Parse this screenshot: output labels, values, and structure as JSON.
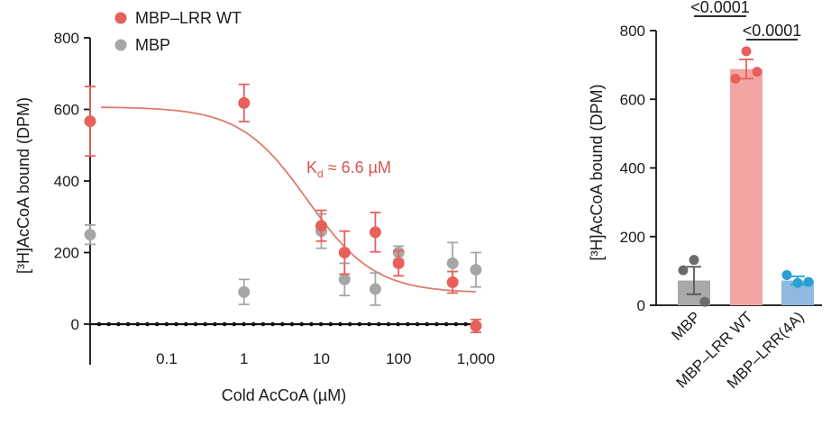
{
  "chart_data": [
    {
      "type": "scatter",
      "title": "",
      "xlabel": "Cold AcCoA (µM)",
      "ylabel": "[³H]AcCoA bound (DPM)",
      "x_scale": "log",
      "x_tick_labels": [
        "0.1",
        "1",
        "10",
        "100",
        "1,000"
      ],
      "x_ticks": [
        0.1,
        1,
        10,
        100,
        1000
      ],
      "y_ticks": [
        0,
        200,
        400,
        600,
        800
      ],
      "ylim": [
        0,
        800
      ],
      "legend_position": "top-left",
      "annotation": {
        "label_main": "K",
        "label_sub": "d",
        "label_rest": " ≈ 6.6 µM",
        "color": "#d9534f"
      },
      "fit": {
        "series": "MBP–LRR WT",
        "top": 607,
        "bottom": 87,
        "kd": 6.6,
        "hill": 1.0,
        "color": "#e07a6e"
      },
      "series": [
        {
          "name": "MBP–LRR WT",
          "color": "#e8605a",
          "points": [
            {
              "x": 0,
              "y": 567,
              "err": 97
            },
            {
              "x": 1,
              "y": 618,
              "err": 52
            },
            {
              "x": 10,
              "y": 275,
              "err": 43
            },
            {
              "x": 20,
              "y": 200,
              "err": 60
            },
            {
              "x": 50,
              "y": 257,
              "err": 55
            },
            {
              "x": 100,
              "y": 170,
              "err": 35
            },
            {
              "x": 500,
              "y": 117,
              "err": 30
            },
            {
              "x": 1000,
              "y": -5,
              "err": 18
            }
          ]
        },
        {
          "name": "MBP",
          "color": "#a6a6a8",
          "points": [
            {
              "x": 0,
              "y": 250,
              "err": 27
            },
            {
              "x": 1,
              "y": 90,
              "err": 35
            },
            {
              "x": 10,
              "y": 260,
              "err": 48
            },
            {
              "x": 20,
              "y": 125,
              "err": 45
            },
            {
              "x": 50,
              "y": 98,
              "err": 45
            },
            {
              "x": 100,
              "y": 200,
              "err": 18
            },
            {
              "x": 500,
              "y": 170,
              "err": 58
            },
            {
              "x": 1000,
              "y": 152,
              "err": 48
            }
          ]
        }
      ],
      "baseline": {
        "y": 0,
        "style": "dotted",
        "color": "#111111"
      }
    },
    {
      "type": "bar",
      "title": "",
      "xlabel": "",
      "ylabel": "[³H]AcCoA bound (DPM)",
      "categories": [
        "MBP",
        "MBP–LRR WT",
        "MBP–LRR(4A)"
      ],
      "values": [
        72,
        688,
        72
      ],
      "errors": [
        40,
        28,
        12
      ],
      "bar_colors": [
        "#a9a9ab",
        "#f2a6a3",
        "#8fb9de"
      ],
      "dot_colors": [
        "#6b6b6b",
        "#e8605a",
        "#2a9fd6"
      ],
      "points": [
        [
          132,
          102,
          10
        ],
        [
          740,
          660,
          680
        ],
        [
          65,
          88,
          68
        ]
      ],
      "y_ticks": [
        0,
        200,
        400,
        600,
        800
      ],
      "ylim": [
        0,
        800
      ],
      "significance": [
        {
          "from": "MBP",
          "to": "MBP–LRR WT",
          "label": "<0.0001"
        },
        {
          "from": "MBP–LRR WT",
          "to": "MBP–LRR(4A)",
          "label": "<0.0001"
        }
      ]
    }
  ]
}
